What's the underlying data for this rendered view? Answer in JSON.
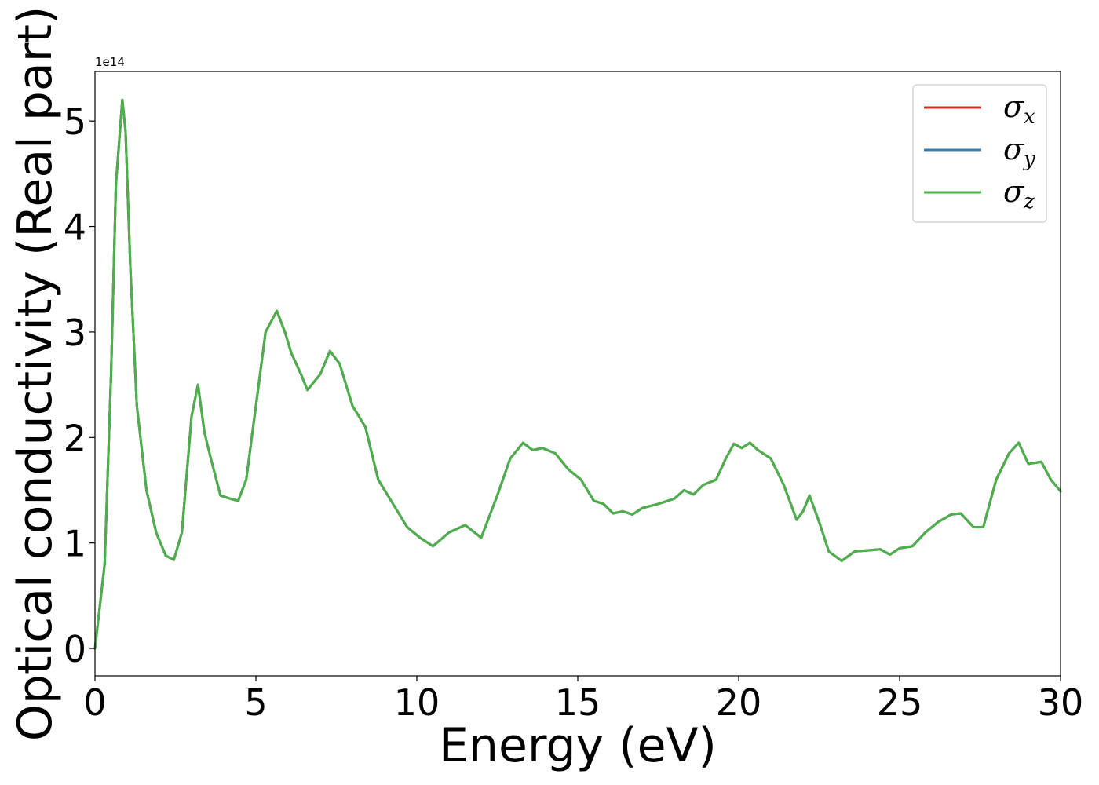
{
  "chart_data": {
    "type": "line",
    "title": "",
    "xlabel": "Energy (eV)",
    "ylabel": "Optical conductivity (Real part)",
    "y_offset_label": "1e14",
    "xlim": [
      0,
      30
    ],
    "ylim": [
      -0.26,
      5.47
    ],
    "x_ticks": [
      0,
      5,
      10,
      15,
      20,
      25,
      30
    ],
    "y_ticks": [
      0,
      1,
      2,
      3,
      4,
      5
    ],
    "grid": false,
    "legend_position": "top-right",
    "x": [
      0,
      0.3,
      0.5,
      0.65,
      0.85,
      0.95,
      1.1,
      1.3,
      1.6,
      1.9,
      2.2,
      2.45,
      2.7,
      3.0,
      3.2,
      3.4,
      3.6,
      3.9,
      4.2,
      4.45,
      4.7,
      5.0,
      5.3,
      5.65,
      5.9,
      6.1,
      6.4,
      6.6,
      7.0,
      7.3,
      7.6,
      8.0,
      8.4,
      8.8,
      9.3,
      9.7,
      10.1,
      10.5,
      11.0,
      11.5,
      12.0,
      12.5,
      12.9,
      13.3,
      13.6,
      13.9,
      14.3,
      14.7,
      15.1,
      15.5,
      15.8,
      16.1,
      16.4,
      16.7,
      17.0,
      17.5,
      18.0,
      18.3,
      18.6,
      18.9,
      19.3,
      19.6,
      19.85,
      20.1,
      20.35,
      20.6,
      21.0,
      21.4,
      21.8,
      22.0,
      22.2,
      22.5,
      22.8,
      23.2,
      23.6,
      24.0,
      24.4,
      24.7,
      25.0,
      25.4,
      25.8,
      26.2,
      26.6,
      26.9,
      27.3,
      27.6,
      28.0,
      28.4,
      28.7,
      29.0,
      29.4,
      29.7,
      30.0
    ],
    "series": [
      {
        "name": "σx",
        "name_base": "σ",
        "name_sub": "x",
        "color": "#d62728",
        "values": [
          0,
          0.8,
          2.6,
          4.4,
          5.2,
          4.9,
          3.6,
          2.3,
          1.5,
          1.1,
          0.88,
          0.84,
          1.1,
          2.2,
          2.5,
          2.05,
          1.8,
          1.45,
          1.42,
          1.4,
          1.6,
          2.3,
          3.0,
          3.2,
          3.0,
          2.8,
          2.6,
          2.45,
          2.6,
          2.82,
          2.7,
          2.3,
          2.1,
          1.6,
          1.35,
          1.15,
          1.05,
          0.97,
          1.1,
          1.17,
          1.05,
          1.45,
          1.8,
          1.95,
          1.88,
          1.9,
          1.85,
          1.7,
          1.6,
          1.4,
          1.37,
          1.28,
          1.3,
          1.27,
          1.33,
          1.37,
          1.42,
          1.5,
          1.46,
          1.55,
          1.6,
          1.8,
          1.94,
          1.9,
          1.95,
          1.88,
          1.8,
          1.55,
          1.22,
          1.3,
          1.45,
          1.2,
          0.92,
          0.83,
          0.92,
          0.93,
          0.94,
          0.89,
          0.95,
          0.97,
          1.1,
          1.2,
          1.27,
          1.28,
          1.15,
          1.15,
          1.6,
          1.85,
          1.95,
          1.75,
          1.77,
          1.6,
          1.49
        ]
      },
      {
        "name": "σy",
        "name_base": "σ",
        "name_sub": "y",
        "color": "#377eb8",
        "values": [
          0,
          0.8,
          2.6,
          4.4,
          5.2,
          4.9,
          3.6,
          2.3,
          1.5,
          1.1,
          0.88,
          0.84,
          1.1,
          2.2,
          2.5,
          2.05,
          1.8,
          1.45,
          1.42,
          1.4,
          1.6,
          2.3,
          3.0,
          3.2,
          3.0,
          2.8,
          2.6,
          2.45,
          2.6,
          2.82,
          2.7,
          2.3,
          2.1,
          1.6,
          1.35,
          1.15,
          1.05,
          0.97,
          1.1,
          1.17,
          1.05,
          1.45,
          1.8,
          1.95,
          1.88,
          1.9,
          1.85,
          1.7,
          1.6,
          1.4,
          1.37,
          1.28,
          1.3,
          1.27,
          1.33,
          1.37,
          1.42,
          1.5,
          1.46,
          1.55,
          1.6,
          1.8,
          1.94,
          1.9,
          1.95,
          1.88,
          1.8,
          1.55,
          1.22,
          1.3,
          1.45,
          1.2,
          0.92,
          0.83,
          0.92,
          0.93,
          0.94,
          0.89,
          0.95,
          0.97,
          1.1,
          1.2,
          1.27,
          1.28,
          1.15,
          1.15,
          1.6,
          1.85,
          1.95,
          1.75,
          1.77,
          1.6,
          1.49
        ]
      },
      {
        "name": "σz",
        "name_base": "σ",
        "name_sub": "z",
        "color": "#4daf4a",
        "values": [
          0,
          0.8,
          2.6,
          4.4,
          5.2,
          4.9,
          3.6,
          2.3,
          1.5,
          1.1,
          0.88,
          0.84,
          1.1,
          2.2,
          2.5,
          2.05,
          1.8,
          1.45,
          1.42,
          1.4,
          1.6,
          2.3,
          3.0,
          3.2,
          3.0,
          2.8,
          2.6,
          2.45,
          2.6,
          2.82,
          2.7,
          2.3,
          2.1,
          1.6,
          1.35,
          1.15,
          1.05,
          0.97,
          1.1,
          1.17,
          1.05,
          1.45,
          1.8,
          1.95,
          1.88,
          1.9,
          1.85,
          1.7,
          1.6,
          1.4,
          1.37,
          1.28,
          1.3,
          1.27,
          1.33,
          1.37,
          1.42,
          1.5,
          1.46,
          1.55,
          1.6,
          1.8,
          1.94,
          1.9,
          1.95,
          1.88,
          1.8,
          1.55,
          1.22,
          1.3,
          1.45,
          1.2,
          0.92,
          0.83,
          0.92,
          0.93,
          0.94,
          0.89,
          0.95,
          0.97,
          1.1,
          1.2,
          1.27,
          1.28,
          1.15,
          1.15,
          1.6,
          1.85,
          1.95,
          1.75,
          1.77,
          1.6,
          1.49
        ]
      }
    ]
  }
}
